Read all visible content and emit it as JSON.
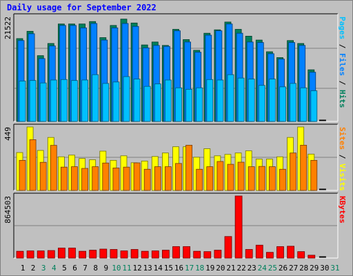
{
  "title": "Daily usage for September 2022",
  "colors": {
    "background": "#c0c0c0",
    "title": "#0000ff",
    "hits": "#00805c",
    "files": "#0080ff",
    "pages": "#00c0ff",
    "visits": "#ffff00",
    "sites": "#ff8000",
    "kbytes": "#ff0000",
    "weekday": "#000000",
    "weekend": "#00805c"
  },
  "chart_data": [
    {
      "type": "bar",
      "panel": "hits-files-pages",
      "ymax_label": "21522",
      "ylim": [
        0,
        21522
      ],
      "side_labels": [
        "Pages",
        "Files",
        "Hits"
      ],
      "categories": [
        "1",
        "2",
        "3",
        "4",
        "5",
        "6",
        "7",
        "8",
        "9",
        "10",
        "11",
        "12",
        "13",
        "14",
        "15",
        "16",
        "17",
        "18",
        "19",
        "20",
        "21",
        "22",
        "23",
        "24",
        "25",
        "26",
        "27",
        "28",
        "29",
        "30",
        "31"
      ],
      "series": [
        {
          "name": "Hits",
          "values": [
            17000,
            18500,
            13500,
            16000,
            20000,
            20000,
            20000,
            20500,
            17200,
            19700,
            21000,
            20200,
            15700,
            16300,
            15600,
            18900,
            16800,
            14600,
            18100,
            18800,
            20400,
            18900,
            17500,
            16700,
            14300,
            13100,
            16600,
            16000,
            10600,
            0,
            0
          ]
        },
        {
          "name": "Files",
          "values": [
            16600,
            18000,
            12900,
            15500,
            19700,
            19700,
            19200,
            20100,
            16700,
            19200,
            20100,
            19500,
            15100,
            15600,
            15400,
            18600,
            16300,
            14200,
            17700,
            18600,
            20000,
            18100,
            16300,
            16200,
            13900,
            12800,
            16200,
            15600,
            10100,
            0,
            0
          ]
        },
        {
          "name": "Pages",
          "values": [
            8300,
            8400,
            7900,
            8500,
            8600,
            8400,
            8500,
            9600,
            7800,
            8100,
            9200,
            8700,
            7200,
            7700,
            8500,
            6900,
            6600,
            6900,
            8600,
            8500,
            9600,
            8900,
            8700,
            7400,
            8700,
            7100,
            7800,
            6900,
            6300,
            0,
            0
          ]
        }
      ]
    },
    {
      "type": "bar",
      "panel": "visits-sites",
      "ymax_label": "449",
      "ylim": [
        0,
        449
      ],
      "side_labels": [
        "Sites",
        "Visits"
      ],
      "categories": [
        "1",
        "2",
        "3",
        "4",
        "5",
        "6",
        "7",
        "8",
        "9",
        "10",
        "11",
        "12",
        "13",
        "14",
        "15",
        "16",
        "17",
        "18",
        "19",
        "20",
        "21",
        "22",
        "23",
        "24",
        "25",
        "26",
        "27",
        "28",
        "29",
        "30",
        "31"
      ],
      "series": [
        {
          "name": "Visits",
          "values": [
            268,
            449,
            283,
            375,
            238,
            250,
            226,
            217,
            278,
            213,
            245,
            196,
            208,
            240,
            265,
            309,
            309,
            235,
            295,
            245,
            255,
            265,
            280,
            222,
            222,
            238,
            375,
            449,
            257,
            0,
            0
          ]
        },
        {
          "name": "Sites",
          "values": [
            213,
            359,
            199,
            319,
            165,
            168,
            156,
            168,
            194,
            159,
            165,
            195,
            150,
            168,
            168,
            191,
            320,
            150,
            168,
            205,
            185,
            200,
            168,
            170,
            168,
            150,
            265,
            320,
            213,
            0,
            0
          ]
        }
      ]
    },
    {
      "type": "bar",
      "panel": "kbytes",
      "ymax_label": "864503",
      "ylim": [
        0,
        864503
      ],
      "side_labels": [
        "KBytes"
      ],
      "categories": [
        "1",
        "2",
        "3",
        "4",
        "5",
        "6",
        "7",
        "8",
        "9",
        "10",
        "11",
        "12",
        "13",
        "14",
        "15",
        "16",
        "17",
        "18",
        "19",
        "20",
        "21",
        "22",
        "23",
        "24",
        "25",
        "26",
        "27",
        "28",
        "29",
        "30",
        "31"
      ],
      "series": [
        {
          "name": "KBytes",
          "values": [
            95000,
            100000,
            100000,
            105000,
            140000,
            140000,
            95000,
            110000,
            125000,
            120000,
            100000,
            120000,
            95000,
            100000,
            110000,
            160000,
            160000,
            95000,
            90000,
            110000,
            300000,
            864503,
            120000,
            180000,
            80000,
            160000,
            165000,
            90000,
            40000,
            0,
            0
          ]
        }
      ]
    }
  ],
  "day_colors": [
    "weekday",
    "weekday",
    "weekend",
    "weekend",
    "weekday",
    "weekday",
    "weekday",
    "weekday",
    "weekday",
    "weekend",
    "weekend",
    "weekday",
    "weekday",
    "weekday",
    "weekday",
    "weekday",
    "weekend",
    "weekend",
    "weekday",
    "weekday",
    "weekday",
    "weekday",
    "weekday",
    "weekend",
    "weekend",
    "weekday",
    "weekday",
    "weekday",
    "weekday",
    "weekday",
    "weekend"
  ]
}
